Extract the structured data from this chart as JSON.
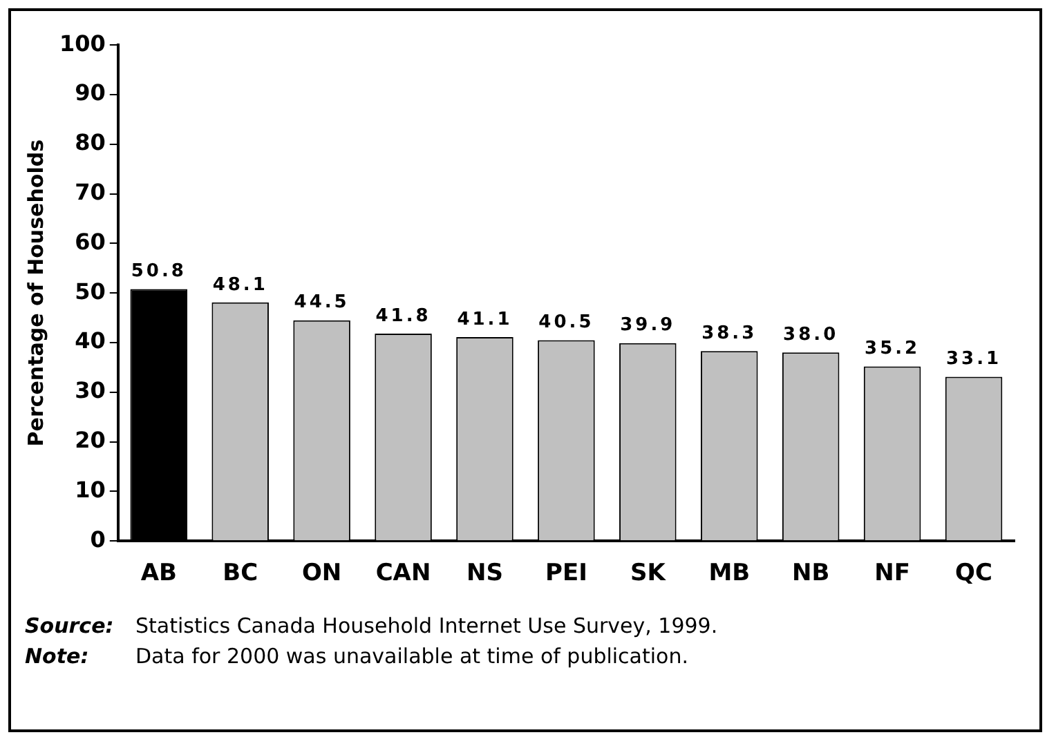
{
  "chart_data": {
    "type": "bar",
    "ylabel": "Percentage of Households",
    "categories": [
      "AB",
      "BC",
      "ON",
      "CAN",
      "NS",
      "PEI",
      "SK",
      "MB",
      "NB",
      "NF",
      "QC"
    ],
    "values": [
      50.8,
      48.1,
      44.5,
      41.8,
      41.1,
      40.5,
      39.9,
      38.3,
      38.0,
      35.2,
      33.1
    ],
    "colors": [
      "#000000",
      "#c0c0c0",
      "#c0c0c0",
      "#c0c0c0",
      "#c0c0c0",
      "#c0c0c0",
      "#c0c0c0",
      "#c0c0c0",
      "#c0c0c0",
      "#c0c0c0",
      "#c0c0c0"
    ],
    "value_labels": [
      "50.8",
      "48.1",
      "44.5",
      "41.8",
      "41.1",
      "40.5",
      "39.9",
      "38.3",
      "38.0",
      "35.2",
      "33.1"
    ],
    "ylim": [
      0,
      100
    ],
    "yticks": [
      0,
      10,
      20,
      30,
      40,
      50,
      60,
      70,
      80,
      90,
      100
    ],
    "grid": false,
    "legend": false,
    "annotations": [
      "Source: Statistics Canada Household Internet Use Survey, 1999.",
      "Note: Data for 2000 was unavailable at time of publication."
    ]
  }
}
